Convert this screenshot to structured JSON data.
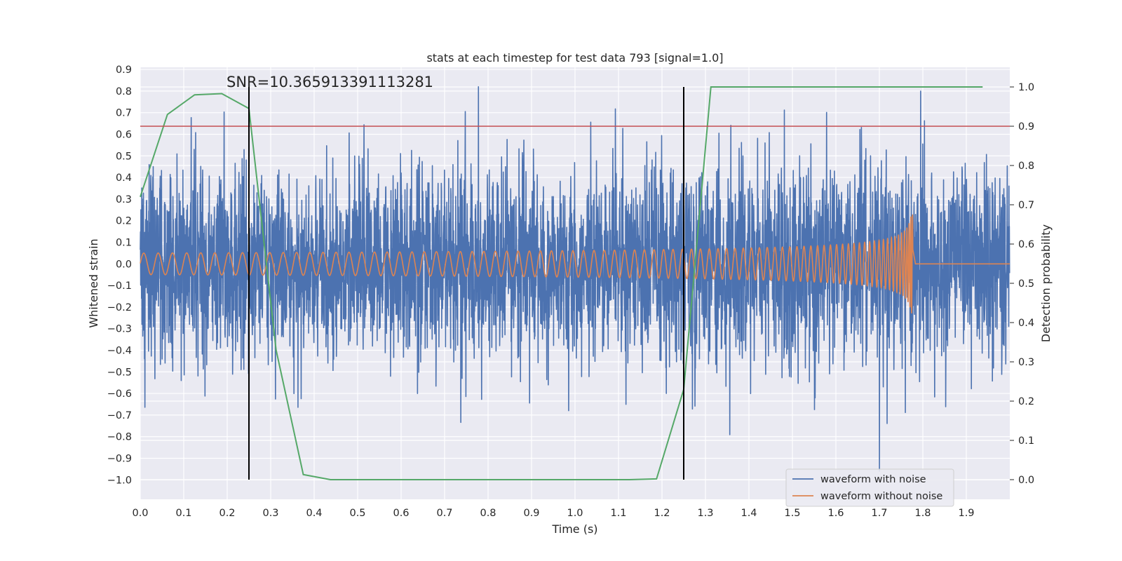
{
  "chart_data": {
    "type": "line",
    "title": "stats at each timestep for test data 793 [signal=1.0]",
    "xlabel": "Time (s)",
    "ylabel": "Whitened strain",
    "y2label": "Detection probability",
    "xlim": [
      0.0,
      2.0
    ],
    "ylim": [
      -1.09,
      0.91
    ],
    "y2lim": [
      -0.05,
      1.05
    ],
    "xticks": [
      "0.0",
      "0.1",
      "0.2",
      "0.3",
      "0.4",
      "0.5",
      "0.6",
      "0.7",
      "0.8",
      "0.9",
      "1.0",
      "1.1",
      "1.2",
      "1.3",
      "1.4",
      "1.5",
      "1.6",
      "1.7",
      "1.8",
      "1.9"
    ],
    "yticks": [
      "0.9",
      "0.8",
      "0.7",
      "0.6",
      "0.5",
      "0.4",
      "0.3",
      "0.2",
      "0.1",
      "0.0",
      "−0.1",
      "−0.2",
      "−0.3",
      "−0.4",
      "−0.5",
      "−0.6",
      "−0.7",
      "−0.8",
      "−0.9",
      "−1.0"
    ],
    "y2ticks": [
      "1.0",
      "0.9",
      "0.8",
      "0.7",
      "0.6",
      "0.5",
      "0.4",
      "0.3",
      "0.2",
      "0.1",
      "0.0"
    ],
    "annotation": "SNR=10.365913391113281",
    "grid": true,
    "legend_position": "lower-right",
    "series": [
      {
        "name": "waveform with noise",
        "color": "#4c72b0",
        "axis": "left",
        "kind": "noise",
        "sample_rate": 2048,
        "amplitude_std": 0.22,
        "notable_peaks": [
          [
            0.778,
            0.82
          ],
          [
            1.795,
            0.8
          ],
          [
            1.7,
            -0.96
          ],
          [
            1.25,
            -0.91
          ]
        ]
      },
      {
        "name": "waveform without noise",
        "color": "#dd8452",
        "axis": "left",
        "kind": "chirp",
        "start_freq_hz": 30,
        "end_time": 1.777,
        "amplitude_start": 0.05,
        "amplitude_peak": 0.27
      },
      {
        "color": "#55a868",
        "axis": "right",
        "x": [
          0.0,
          0.0625,
          0.125,
          0.1875,
          0.25,
          0.3125,
          0.375,
          0.4375,
          0.5,
          0.5625,
          0.625,
          0.6875,
          0.75,
          0.8125,
          0.875,
          0.9375,
          1.0,
          1.0625,
          1.125,
          1.1875,
          1.25,
          1.3125,
          1.375,
          1.4375,
          1.5,
          1.5625,
          1.625,
          1.6875,
          1.75,
          1.8125,
          1.875,
          1.9375
        ],
        "values": [
          0.72,
          0.93,
          0.98,
          0.983,
          0.945,
          0.33,
          0.013,
          0.0,
          0.0,
          0.0,
          0.0,
          0.0,
          0.0,
          0.0,
          0.0,
          0.0,
          0.0,
          0.0,
          0.0,
          0.002,
          0.23,
          1.0,
          1.0,
          1.0,
          1.0,
          1.0,
          1.0,
          1.0,
          1.0,
          1.0,
          1.0,
          1.0
        ]
      },
      {
        "color": "#c44e52",
        "axis": "right",
        "kind": "hline",
        "value": 0.9
      }
    ],
    "vlines": [
      {
        "x": 0.25,
        "color": "#000000"
      },
      {
        "x": 1.25,
        "color": "#000000"
      }
    ],
    "legend": [
      "waveform with noise",
      "waveform without noise"
    ]
  }
}
